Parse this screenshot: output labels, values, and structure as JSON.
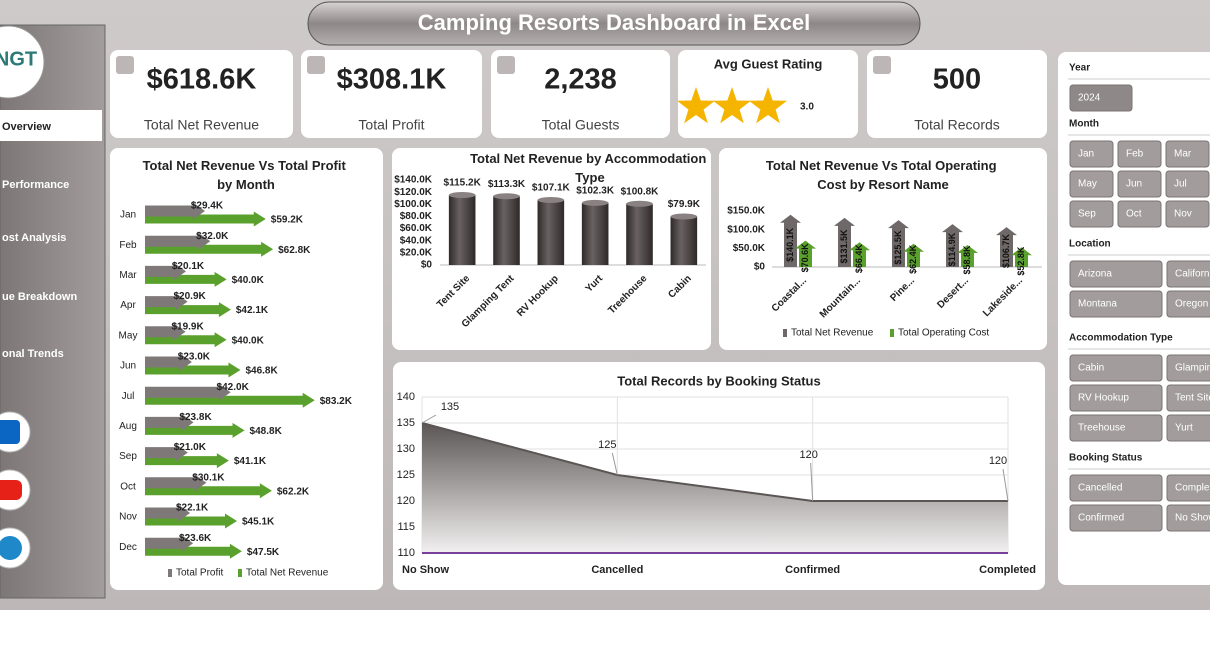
{
  "header": {
    "title": "Camping Resorts Dashboard in Excel"
  },
  "sidebar": {
    "logo": "NGT",
    "nav": [
      "Overview",
      "Performance",
      "ost Analysis",
      "ue Breakdown",
      "onal Trends"
    ]
  },
  "kpis": [
    {
      "value": "$618.6K",
      "label": "Total Net Revenue"
    },
    {
      "value": "$308.1K",
      "label": "Total Profit"
    },
    {
      "value": "2,238",
      "label": "Total Guests"
    },
    {
      "label": "Avg Guest Rating",
      "rating": {
        "value": 3,
        "label": "3.0"
      }
    },
    {
      "value": "500",
      "label": "Total Records"
    }
  ],
  "chart_data": [
    {
      "type": "arrow-bar",
      "title": "Total Net Revenue Vs Total Profit by Month",
      "categories": [
        "Jan",
        "Feb",
        "Mar",
        "Apr",
        "May",
        "Jun",
        "Jul",
        "Aug",
        "Sep",
        "Oct",
        "Nov",
        "Dec"
      ],
      "series": [
        {
          "name": "Total Profit",
          "color": "#7f7878",
          "values": [
            29.4,
            32.0,
            20.1,
            20.9,
            19.9,
            23.0,
            42.0,
            23.8,
            21.0,
            30.1,
            22.1,
            23.6
          ],
          "value_labels": [
            "$29.4K",
            "$32.0K",
            "$20.1K",
            "$20.9K",
            "$19.9K",
            "$23.0K",
            "$42.0K",
            "$23.8K",
            "$21.0K",
            "$30.1K",
            "$22.1K",
            "$23.6K"
          ]
        },
        {
          "name": "Total Net Revenue",
          "color": "#5aa02c",
          "values": [
            59.2,
            62.8,
            40.0,
            42.1,
            40.0,
            46.8,
            83.2,
            48.8,
            41.1,
            62.2,
            45.1,
            47.5
          ],
          "value_labels": [
            "$59.2K",
            "$62.8K",
            "$40.0K",
            "$42.1K",
            "$40.0K",
            "$46.8K",
            "$83.2K",
            "$48.8K",
            "$41.1K",
            "$62.2K",
            "$45.1K",
            "$47.5K"
          ]
        }
      ]
    },
    {
      "type": "bar",
      "title": "Total Net Revenue by Accommodation Type",
      "categories": [
        "Tent Site",
        "Glamping Tent",
        "RV Hookup",
        "Yurt",
        "Treehouse",
        "Cabin"
      ],
      "color": "#4a4343",
      "values": [
        115.2,
        113.3,
        107.1,
        102.3,
        100.8,
        79.9
      ],
      "value_labels": [
        "$115.2K",
        "$113.3K",
        "$107.1K",
        "$102.3K",
        "$100.8K",
        "$79.9K"
      ],
      "ylim": [
        0,
        140
      ],
      "yticks": [
        {
          "value": 0,
          "label": "$0"
        },
        {
          "value": 20,
          "label": "$20.0K"
        },
        {
          "value": 40,
          "label": "$40.0K"
        },
        {
          "value": 60,
          "label": "$60.0K"
        },
        {
          "value": 80,
          "label": "$80.0K"
        },
        {
          "value": 100,
          "label": "$100.0K"
        },
        {
          "value": 120,
          "label": "$120.0K"
        },
        {
          "value": 140,
          "label": "$140.0K"
        }
      ]
    },
    {
      "type": "arrow-column",
      "title": "Total Net Revenue Vs Total Operating Cost by Resort Name",
      "categories": [
        "Coastal...",
        "Mountain...",
        "Pine...",
        "Desert...",
        "Lakeside..."
      ],
      "series": [
        {
          "name": "Total Net Revenue",
          "color": "#6f6868",
          "values": [
            140.1,
            131.5,
            125.5,
            114.9,
            106.7
          ],
          "value_labels": [
            "$140.1K",
            "$131.5K",
            "$125.5K",
            "$114.9K",
            "$106.7K"
          ]
        },
        {
          "name": "Total Operating Cost",
          "color": "#5aa02c",
          "values": [
            70.6,
            66.4,
            62.4,
            58.8,
            52.8
          ],
          "value_labels": [
            "$70.6K",
            "$66.4K",
            "$62.4K",
            "$58.8K",
            "$52.8K"
          ]
        }
      ],
      "ylim": [
        0,
        150
      ],
      "yticks": [
        {
          "value": 0,
          "label": "$0"
        },
        {
          "value": 50,
          "label": "$50.0K"
        },
        {
          "value": 100,
          "label": "$100.0K"
        },
        {
          "value": 150,
          "label": "$150.0K"
        }
      ]
    },
    {
      "type": "area",
      "title": "Total Records by Booking Status",
      "categories": [
        "No Show",
        "Cancelled",
        "Confirmed",
        "Completed"
      ],
      "values": [
        135,
        125,
        120,
        120
      ],
      "color": "#5b5555",
      "ylim": [
        110,
        140
      ],
      "yticks": [
        110,
        115,
        120,
        125,
        130,
        135,
        140
      ],
      "grid": true
    }
  ],
  "slicers": [
    {
      "title": "Year",
      "items": [
        "2024"
      ]
    },
    {
      "title": "Month",
      "items": [
        "Jan",
        "Feb",
        "Mar",
        "May",
        "Jun",
        "Jul",
        "Sep",
        "Oct",
        "Nov"
      ]
    },
    {
      "title": "Location",
      "items": [
        "Arizona",
        "California",
        "Montana",
        "Oregon"
      ]
    },
    {
      "title": "Accommodation Type",
      "items": [
        "Cabin",
        "Glamping",
        "RV Hookup",
        "Tent Site",
        "Treehouse",
        "Yurt"
      ]
    },
    {
      "title": "Booking Status",
      "items": [
        "Cancelled",
        "Completed",
        "Confirmed",
        "No Show"
      ]
    }
  ]
}
